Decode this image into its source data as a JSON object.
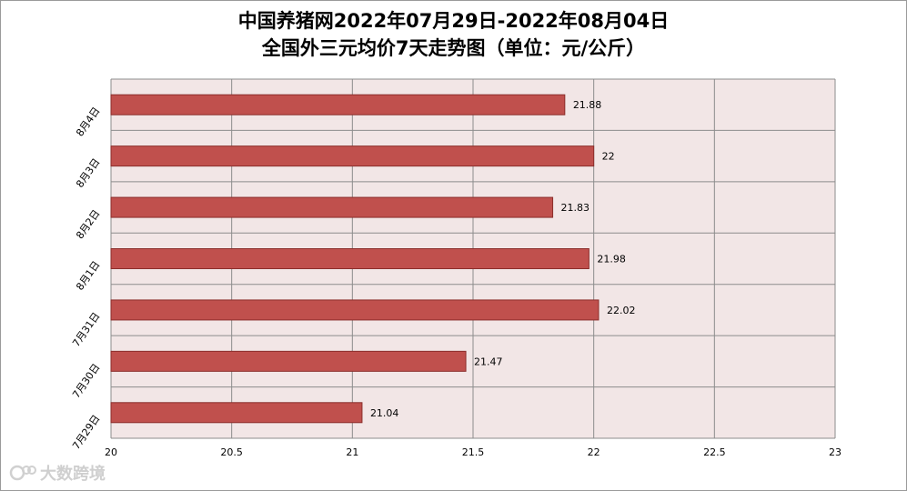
{
  "chart_data": {
    "type": "bar",
    "orientation": "horizontal",
    "title": "中国养猪网2022年07月29日-2022年08月04日",
    "subtitle": "全国外三元均价7天走势图（单位：元/公斤）",
    "categories": [
      "8月4日",
      "8月3日",
      "8月2日",
      "8月1日",
      "7月31日",
      "7月30日",
      "7月29日"
    ],
    "values": [
      21.88,
      22,
      21.83,
      21.98,
      22.02,
      21.47,
      21.04
    ],
    "value_labels": [
      "21.88",
      "22",
      "21.83",
      "21.98",
      "22.02",
      "21.47",
      "21.04"
    ],
    "xlim": [
      20,
      23
    ],
    "x_ticks": [
      20,
      20.5,
      21,
      21.5,
      22,
      22.5,
      23
    ],
    "x_tick_labels": [
      "20",
      "20.5",
      "21",
      "21.5",
      "22",
      "22.5",
      "23"
    ],
    "grid": true,
    "bar_color": "#c0504d",
    "plot_background": "#f2e6e6"
  },
  "watermark": {
    "text": "大数跨境",
    "icon": "watermark-logo-icon"
  }
}
